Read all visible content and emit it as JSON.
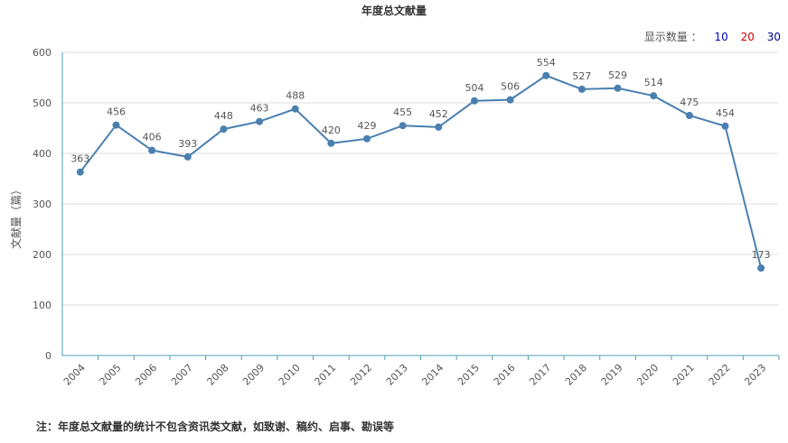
{
  "chart_data": {
    "type": "line",
    "title": "年度总文献量",
    "ylabel": "文献量（篇）",
    "xlabel": "",
    "ylim": [
      0,
      600
    ],
    "yticks": [
      0,
      100,
      200,
      300,
      400,
      500,
      600
    ],
    "categories": [
      "2004",
      "2005",
      "2006",
      "2007",
      "2008",
      "2009",
      "2010",
      "2011",
      "2012",
      "2013",
      "2014",
      "2015",
      "2016",
      "2017",
      "2018",
      "2019",
      "2020",
      "2021",
      "2022",
      "2023"
    ],
    "series": [
      {
        "values": [
          363,
          456,
          406,
          393,
          448,
          463,
          488,
          420,
          429,
          455,
          452,
          504,
          506,
          554,
          527,
          529,
          514,
          475,
          454,
          173
        ]
      }
    ],
    "data_labels": true,
    "grid": true,
    "line_color": "#4a7fb0"
  },
  "display_count": {
    "label": "显示数量 ：",
    "options": [
      {
        "value": "10",
        "color": "#0000cc"
      },
      {
        "value": "20",
        "color": "#cc0000"
      },
      {
        "value": "30",
        "color": "#000099"
      }
    ]
  },
  "footnote": "注：年度总文献量的统计不包含资讯类文献，如致谢、稿约、启事、勘误等"
}
